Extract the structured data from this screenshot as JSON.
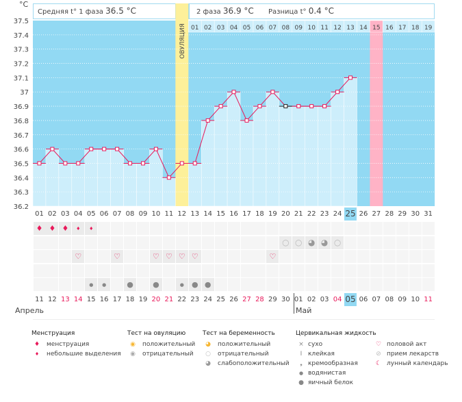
{
  "axis_unit": "°C",
  "header": {
    "phase1_label": "Средняя t° 1 фаза",
    "phase1_value": "36.5 °C",
    "phase2_label": "2 фаза",
    "phase2_value": "36.9 °C",
    "diff_label": "Разница t°",
    "diff_value": "0.4 °C",
    "ovulation_label": "ОВУЛЯЦИЯ"
  },
  "chart_data": {
    "type": "line",
    "title": "",
    "ylabel": "°C",
    "ylim": [
      36.2,
      37.5
    ],
    "yticks": [
      "37.5",
      "37.4",
      "37.3",
      "37.2",
      "37.1",
      "37",
      "36.9",
      "36.8",
      "36.7",
      "36.6",
      "36.5",
      "36.4",
      "36.3",
      "36.2"
    ],
    "cycle_days": [
      "01",
      "02",
      "03",
      "04",
      "05",
      "06",
      "07",
      "08",
      "09",
      "10",
      "11",
      "12",
      "13",
      "14",
      "15",
      "16",
      "17",
      "18",
      "19",
      "20",
      "21",
      "22",
      "23",
      "24",
      "25",
      "26",
      "27",
      "28",
      "29",
      "30",
      "31"
    ],
    "temperatures": [
      36.5,
      36.6,
      36.5,
      36.5,
      36.6,
      36.6,
      36.6,
      36.5,
      36.5,
      36.6,
      36.4,
      36.5,
      36.5,
      36.8,
      36.9,
      37.0,
      36.8,
      36.9,
      37.0,
      36.9,
      36.9,
      36.9,
      36.9,
      37.0,
      37.1
    ],
    "ovulation_day": 12,
    "expected_period_day": 27,
    "current_day": 25,
    "phase2_days": [
      "01",
      "02",
      "03",
      "04",
      "05",
      "06",
      "07",
      "08",
      "09",
      "10",
      "11",
      "12",
      "13",
      "14",
      "15",
      "16",
      "17",
      "18",
      "19"
    ],
    "dates": [
      "11",
      "12",
      "13",
      "14",
      "15",
      "16",
      "17",
      "18",
      "19",
      "20",
      "21",
      "22",
      "23",
      "24",
      "25",
      "26",
      "27",
      "28",
      "29",
      "30",
      "01",
      "02",
      "03",
      "04",
      "05",
      "06",
      "07",
      "08",
      "09",
      "10",
      "11"
    ],
    "weekend_dates": [
      3,
      4,
      10,
      11,
      17,
      18,
      24,
      31
    ],
    "months": [
      "Апрель",
      "Май"
    ],
    "menstruation": {
      "1": "heavy",
      "2": "heavy",
      "3": "heavy",
      "4": "light",
      "5": "light"
    },
    "pregnancy_test": {
      "20": "negative",
      "21": "negative",
      "22": "weak",
      "23": "weak",
      "24": "negative"
    },
    "intercourse": [
      4,
      7,
      10,
      11,
      12,
      13,
      19
    ],
    "cervical": {
      "5": "watery",
      "6": "watery",
      "8": "egg",
      "10": "egg",
      "12": "watery",
      "13": "egg",
      "14": "egg"
    }
  },
  "colors": {
    "bg": "#92d9f3",
    "bar": "#cdeefb",
    "line": "#e8195a",
    "ovulation": "#fdf09a",
    "period": "#ffb3c6",
    "weekend": "#e8195a"
  },
  "legend": {
    "menstruation": {
      "title": "Менструация",
      "items": [
        "менструация",
        "небольшие выделения"
      ]
    },
    "ovulation_test": {
      "title": "Тест на овуляцию",
      "items": [
        "положительный",
        "отрицательный"
      ]
    },
    "pregnancy_test": {
      "title": "Тест на беременность",
      "items": [
        "положительный",
        "отрицательный",
        "слабоположительный"
      ]
    },
    "cervical": {
      "title": "Цервикальная жидкость",
      "items": [
        "сухо",
        "клейкая",
        "кремообразная",
        "водянистая",
        "яичный белок"
      ]
    },
    "other": {
      "items": [
        "половой акт",
        "прием лекарств",
        "лунный календарь"
      ]
    }
  }
}
